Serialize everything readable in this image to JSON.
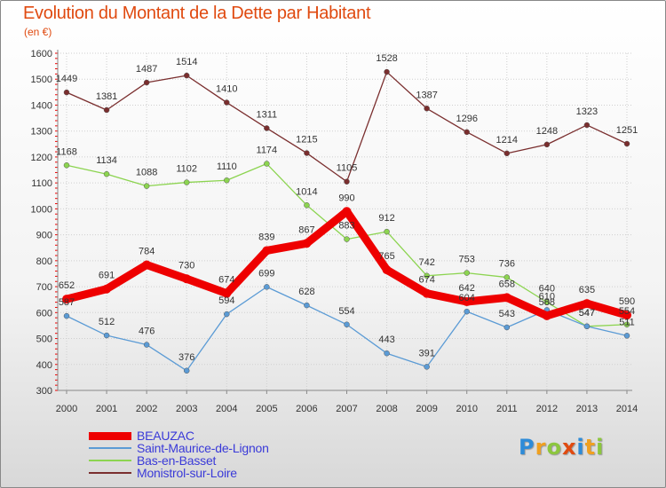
{
  "title": "Evolution du Montant de la Dette par Habitant",
  "unit": "(en €)",
  "logo": {
    "letters": [
      "P",
      "r",
      "o",
      "x",
      "i",
      "t",
      "i"
    ],
    "colors": [
      "#2e8bd8",
      "#f0a020",
      "#8cc63e",
      "#e04a10",
      "#2e8bd8",
      "#f0a020",
      "#8cc63e"
    ]
  },
  "chart_data": {
    "type": "line",
    "title": "Evolution du Montant de la Dette par Habitant",
    "ylabel": "(en €)",
    "xlabel": "",
    "ylim": [
      300,
      1600
    ],
    "yticks": [
      300,
      400,
      500,
      600,
      700,
      800,
      900,
      1000,
      1100,
      1200,
      1300,
      1400,
      1500,
      1600
    ],
    "x": [
      "2000",
      "2001",
      "2002",
      "2003",
      "2004",
      "2005",
      "2006",
      "2007",
      "2008",
      "2009",
      "2010",
      "2011",
      "2012",
      "2013",
      "2014"
    ],
    "grid": true,
    "legend_position": "bottom-left",
    "series": [
      {
        "name": "BEAUZAC",
        "color": "#ee0000",
        "values": [
          652,
          691,
          784,
          730,
          674,
          839,
          867,
          990,
          765,
          674,
          642,
          658,
          588,
          635,
          590
        ],
        "labels": [
          "652",
          "691",
          "784",
          "730",
          "674",
          "839",
          "867",
          "990",
          "765",
          "674",
          "642",
          "658",
          "588",
          "635",
          "590"
        ]
      },
      {
        "name": "Saint-Maurice-de-Lignon",
        "color": "#5b9bd5",
        "values": [
          587,
          512,
          476,
          376,
          594,
          699,
          628,
          554,
          443,
          391,
          604,
          543,
          610,
          547,
          511
        ],
        "labels": [
          "587",
          "512",
          "476",
          "376",
          "594",
          "699",
          "628",
          "554",
          "443",
          "391",
          "604",
          "543",
          "610",
          "547",
          "511"
        ]
      },
      {
        "name": "Bas-en-Basset",
        "color": "#8cd450",
        "values": [
          1168,
          1134,
          1088,
          1102,
          1110,
          1174,
          1014,
          883,
          912,
          742,
          753,
          736,
          640,
          547,
          554
        ],
        "labels": [
          "1168",
          "1134",
          "1088",
          "1102",
          "1110",
          "1174",
          "1014",
          "883",
          "912",
          "742",
          "753",
          "736",
          "640",
          "547",
          "554"
        ]
      },
      {
        "name": "Monistrol-sur-Loire",
        "color": "#7a2e2e",
        "values": [
          1449,
          1381,
          1487,
          1514,
          1410,
          1311,
          1215,
          1105,
          1528,
          1387,
          1296,
          1214,
          1248,
          1323,
          1251
        ],
        "labels": [
          "1449",
          "1381",
          "1487",
          "1514",
          "1410",
          "1311",
          "1215",
          "1105",
          "1528",
          "1387",
          "1296",
          "1214",
          "1248",
          "1323",
          "1251"
        ]
      }
    ]
  }
}
